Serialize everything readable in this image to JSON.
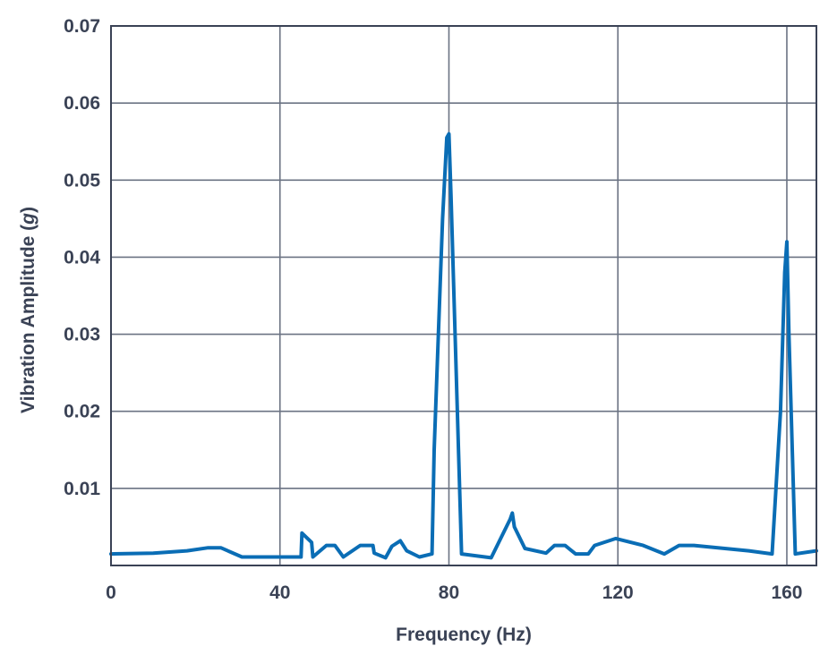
{
  "chart_data": {
    "type": "line",
    "title": "",
    "xlabel": "Frequency (Hz)",
    "ylabel": "Vibration Amplitude (g)",
    "ylabel_parts": {
      "before": "Vibration Amplitude (",
      "italic": "g",
      "after": ")"
    },
    "xlim": [
      0,
      167
    ],
    "ylim": [
      0,
      0.07
    ],
    "x_ticks": [
      0,
      40,
      80,
      120,
      160
    ],
    "y_ticks": [
      0.01,
      0.02,
      0.03,
      0.04,
      0.05,
      0.06,
      0.07
    ],
    "y_tick_labels": [
      "0.01",
      "0.02",
      "0.03",
      "0.04",
      "0.05",
      "0.06",
      "0.07"
    ],
    "grid": true,
    "colors": {
      "line": "#0a6db5",
      "grid": "#6b7383",
      "axis": "#3a4255"
    },
    "series": [
      {
        "x": [
          0,
          10,
          18,
          23,
          26,
          31,
          35,
          40,
          45,
          45.2,
          47.5,
          47.8,
          51,
          53,
          55,
          59,
          62,
          62.3,
          65,
          66.5,
          68.5,
          70,
          73,
          76,
          76.5,
          78.5,
          79.5,
          80,
          80.5,
          82,
          83,
          90,
          94.5,
          95,
          95.5,
          98,
          103,
          105,
          107.5,
          110,
          113,
          114.5,
          119.5,
          126,
          131,
          134.5,
          138,
          151,
          156.5,
          158.5,
          159.5,
          160,
          160.5,
          162,
          167
        ],
        "y": [
          0.0015,
          0.0016,
          0.0019,
          0.0023,
          0.0023,
          0.0011,
          0.0011,
          0.0011,
          0.0011,
          0.0042,
          0.003,
          0.0011,
          0.0026,
          0.0026,
          0.0011,
          0.0026,
          0.0026,
          0.0016,
          0.001,
          0.0025,
          0.0032,
          0.0019,
          0.0011,
          0.0015,
          0.015,
          0.045,
          0.0555,
          0.056,
          0.048,
          0.02,
          0.0015,
          0.001,
          0.006,
          0.0068,
          0.005,
          0.0022,
          0.0016,
          0.0026,
          0.0026,
          0.0015,
          0.0015,
          0.0026,
          0.0035,
          0.0026,
          0.0015,
          0.0026,
          0.0026,
          0.0019,
          0.0015,
          0.02,
          0.038,
          0.042,
          0.03,
          0.0015,
          0.0019
        ]
      }
    ]
  }
}
